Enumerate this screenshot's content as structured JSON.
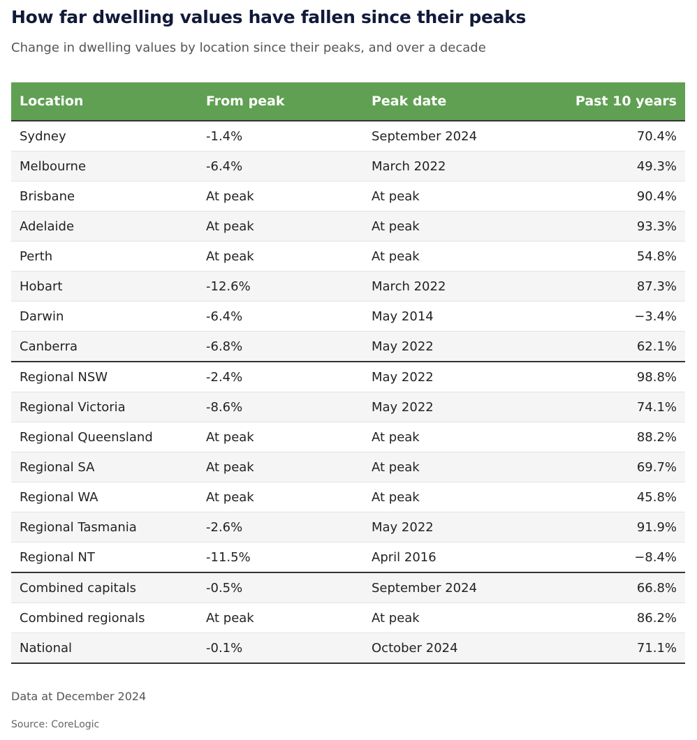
{
  "header": {
    "title": "How far dwelling values have fallen since their peaks",
    "subtitle": "Change in dwelling values by location since their peaks, and over a decade"
  },
  "footer": {
    "note": "Data at December 2024",
    "source": "Source: CoreLogic"
  },
  "colors": {
    "header_bg": "#5fa052",
    "title": "#121a3a",
    "row_alt": "#f5f5f5"
  },
  "chart_data": {
    "type": "table",
    "columns": [
      "Location",
      "From peak",
      "Peak date",
      "Past 10 years"
    ],
    "rows": [
      [
        "Sydney",
        "-1.4%",
        "September 2024",
        "70.4%"
      ],
      [
        "Melbourne",
        "-6.4%",
        "March 2022",
        "49.3%"
      ],
      [
        "Brisbane",
        "At peak",
        "At peak",
        "90.4%"
      ],
      [
        "Adelaide",
        "At peak",
        "At peak",
        "93.3%"
      ],
      [
        "Perth",
        "At peak",
        "At peak",
        "54.8%"
      ],
      [
        "Hobart",
        "-12.6%",
        "March 2022",
        "87.3%"
      ],
      [
        "Darwin",
        "-6.4%",
        "May 2014",
        "−3.4%"
      ],
      [
        "Canberra",
        "-6.8%",
        "May 2022",
        "62.1%"
      ],
      [
        "Regional NSW",
        "-2.4%",
        "May 2022",
        "98.8%"
      ],
      [
        "Regional Victoria",
        "-8.6%",
        "May 2022",
        "74.1%"
      ],
      [
        "Regional Queensland",
        "At peak",
        "At peak",
        "88.2%"
      ],
      [
        "Regional SA",
        "At peak",
        "At peak",
        "69.7%"
      ],
      [
        "Regional WA",
        "At peak",
        "At peak",
        "45.8%"
      ],
      [
        "Regional Tasmania",
        "-2.6%",
        "May 2022",
        "91.9%"
      ],
      [
        "Regional NT",
        "-11.5%",
        "April 2016",
        "−8.4%"
      ],
      [
        "Combined capitals",
        "-0.5%",
        "September 2024",
        "66.8%"
      ],
      [
        "Combined regionals",
        "At peak",
        "At peak",
        "86.2%"
      ],
      [
        "National",
        "-0.1%",
        "October 2024",
        "71.1%"
      ]
    ],
    "group_end_rows": [
      7,
      14
    ]
  }
}
